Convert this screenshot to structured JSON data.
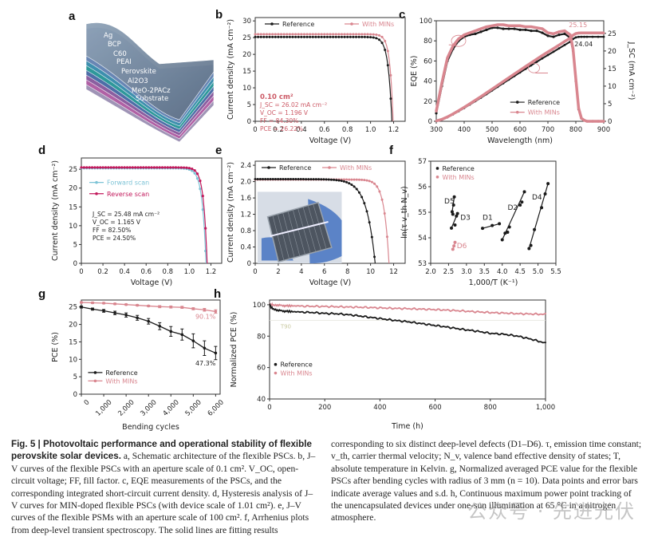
{
  "colors": {
    "reference": "#1a1a1a",
    "mins": "#d9868f",
    "forward": "#7cc3d6",
    "reverse": "#c2185b",
    "axis": "#222",
    "annot": "#cc5a66"
  },
  "panel_a": {
    "label": "a",
    "layers": [
      "Ag",
      "BCP",
      "C60",
      "PEAI",
      "Perovskite",
      "Al2O3",
      "MeO-2PACz",
      "Substrate"
    ]
  },
  "chart_data": [
    {
      "id": "b",
      "label": "b",
      "type": "line",
      "xlabel": "Voltage (V)",
      "ylabel": "Current density (mA cm⁻²)",
      "xlim": [
        0,
        1.3
      ],
      "ylim": [
        0,
        31
      ],
      "xticks": [
        0,
        0.2,
        0.4,
        0.6,
        0.8,
        1.0,
        1.2
      ],
      "xticklabels": [
        "0",
        "0.2",
        "0.4",
        "0.6",
        "0.8",
        "1.0",
        "1.2"
      ],
      "yticks": [
        0,
        5,
        10,
        15,
        20,
        25,
        30
      ],
      "yticklabels": [
        "0",
        "5",
        "10",
        "15",
        "20",
        "25",
        "30"
      ],
      "legend": [
        "Reference",
        "With MINs"
      ],
      "annotation": [
        "0.10 cm²",
        "J_SC = 26.02 mA cm⁻²",
        "V_OC = 1.196 V",
        "FF = 84.30%",
        "PCE = 26.22%"
      ],
      "series": [
        {
          "name": "Reference",
          "jsc": 25.2,
          "voc": 1.185,
          "k": 0.032
        },
        {
          "name": "With MINs",
          "jsc": 26.02,
          "voc": 1.196,
          "k": 0.028
        }
      ]
    },
    {
      "id": "c",
      "label": "c",
      "type": "line",
      "xlabel": "Wavelength (nm)",
      "ylabel": "EQE (%)",
      "y2label": "J_SC (mA cm⁻²)",
      "xlim": [
        300,
        900
      ],
      "ylim": [
        0,
        100
      ],
      "y2lim": [
        0,
        28.6
      ],
      "xticks": [
        300,
        400,
        500,
        600,
        700,
        800,
        900
      ],
      "yticks": [
        0,
        20,
        40,
        60,
        80,
        100
      ],
      "y2ticks": [
        0,
        5,
        10,
        15,
        20,
        25
      ],
      "legend": [
        "Reference",
        "With MINs"
      ],
      "annotations": [
        "25.15",
        "24.04"
      ],
      "eqe_x": [
        300,
        320,
        340,
        360,
        380,
        400,
        420,
        440,
        460,
        480,
        500,
        520,
        540,
        560,
        580,
        600,
        620,
        640,
        660,
        680,
        700,
        720,
        740,
        760,
        780,
        790,
        800,
        810,
        820,
        830,
        840,
        860,
        880,
        900
      ],
      "series": [
        {
          "name": "Reference",
          "eqe": [
            8,
            35,
            60,
            72,
            80,
            84,
            86,
            87,
            89,
            91,
            93,
            93,
            92,
            92,
            92,
            91,
            91,
            90,
            90,
            88,
            85,
            84,
            86,
            87,
            83,
            70,
            40,
            12,
            3,
            1,
            0,
            0,
            0,
            0
          ],
          "jsc_final": 24.04
        },
        {
          "name": "With MINs",
          "eqe": [
            10,
            38,
            63,
            75,
            82,
            86,
            88,
            90,
            92,
            94,
            95,
            96,
            96,
            95,
            95,
            95,
            94,
            94,
            93,
            92,
            88,
            87,
            89,
            90,
            86,
            72,
            42,
            13,
            3,
            1,
            0,
            0,
            0,
            0
          ],
          "jsc_final": 25.15
        }
      ]
    },
    {
      "id": "d",
      "label": "d",
      "type": "line",
      "xlabel": "Voltage (V)",
      "ylabel": "Current density (mA cm⁻²)",
      "xlim": [
        0,
        1.3
      ],
      "ylim": [
        0,
        28
      ],
      "xticks": [
        0,
        0.2,
        0.4,
        0.6,
        0.8,
        1.0,
        1.2
      ],
      "xticklabels": [
        "0",
        "0.2",
        "0.4",
        "0.6",
        "0.8",
        "1.0",
        "1.2"
      ],
      "yticks": [
        0,
        5,
        10,
        15,
        20,
        25
      ],
      "legend": [
        "Forward scan",
        "Reverse scan"
      ],
      "annotation": [
        "J_SC = 25.48 mA cm⁻²",
        "V_OC = 1.165 V",
        "FF = 82.50%",
        "PCE = 24.50%"
      ],
      "series": [
        {
          "name": "Forward scan",
          "jsc": 25.3,
          "voc": 1.155,
          "k": 0.036
        },
        {
          "name": "Reverse scan",
          "jsc": 25.48,
          "voc": 1.165,
          "k": 0.033
        }
      ]
    },
    {
      "id": "e",
      "label": "e",
      "type": "line",
      "xlabel": "Voltage (V)",
      "ylabel": "Current density (mA cm⁻²)",
      "xlim": [
        0,
        13
      ],
      "ylim": [
        0,
        2.5
      ],
      "xticks": [
        0,
        2,
        4,
        6,
        8,
        10,
        12
      ],
      "yticks": [
        0,
        0.4,
        0.8,
        1.2,
        1.6,
        2.0,
        2.4
      ],
      "yticklabels": [
        "0",
        "0.4",
        "0.8",
        "1.2",
        "1.6",
        "2.0",
        "2.4"
      ],
      "legend": [
        "Reference",
        "With MINs"
      ],
      "series": [
        {
          "name": "Reference",
          "jsc": 2.06,
          "voc": 10.4,
          "k": 0.75
        },
        {
          "name": "With MINs",
          "jsc": 2.05,
          "voc": 11.6,
          "k": 0.42
        }
      ],
      "inset": "photo of flexible perovskite solar module held in gloved hand"
    },
    {
      "id": "f",
      "label": "f",
      "type": "scatter",
      "xlabel": "1,000/T (K⁻¹)",
      "ylabel": "ln(τ v_th N_v)",
      "xlim": [
        2.0,
        5.5
      ],
      "ylim": [
        53,
        57
      ],
      "xticks": [
        2.0,
        2.5,
        3.0,
        3.5,
        4.0,
        4.5,
        5.0,
        5.5
      ],
      "xticklabels": [
        "2.0",
        "2.5",
        "3.0",
        "3.5",
        "4.0",
        "4.5",
        "5.0",
        "5.5"
      ],
      "yticks": [
        53,
        54,
        55,
        56,
        57
      ],
      "legend": [
        "Reference",
        "With MINs"
      ],
      "defects": [
        {
          "name": "D1",
          "series": "Reference",
          "points": [
            [
              3.45,
              54.37
            ],
            [
              3.72,
              54.48
            ],
            [
              3.92,
              54.55
            ]
          ]
        },
        {
          "name": "D2",
          "series": "Reference",
          "points": [
            [
              4.0,
              53.92
            ],
            [
              4.08,
              54.18
            ],
            [
              4.15,
              54.22
            ],
            [
              4.2,
              54.42
            ],
            [
              4.5,
              55.28
            ],
            [
              4.55,
              55.4
            ],
            [
              4.62,
              55.8
            ]
          ]
        },
        {
          "name": "D3",
          "series": "Reference",
          "points": [
            [
              2.58,
              54.38
            ],
            [
              2.68,
              54.5
            ],
            [
              2.72,
              54.85
            ],
            [
              2.75,
              54.95
            ]
          ]
        },
        {
          "name": "D4",
          "series": "Reference",
          "points": [
            [
              4.75,
              53.58
            ],
            [
              4.8,
              53.7
            ],
            [
              4.9,
              54.32
            ],
            [
              5.1,
              55.18
            ],
            [
              5.2,
              55.72
            ],
            [
              5.28,
              56.12
            ]
          ]
        },
        {
          "name": "D5",
          "series": "Reference",
          "points": [
            [
              2.6,
              55.02
            ],
            [
              2.62,
              54.92
            ],
            [
              2.64,
              55.28
            ],
            [
              2.66,
              55.6
            ]
          ]
        },
        {
          "name": "D6",
          "series": "With MINs",
          "points": [
            [
              2.62,
              53.55
            ],
            [
              2.65,
              53.68
            ],
            [
              2.68,
              53.82
            ]
          ]
        }
      ]
    },
    {
      "id": "g",
      "label": "g",
      "type": "line",
      "xlabel": "Bending cycles",
      "ylabel": "PCE (%)",
      "xlim": [
        0,
        6200
      ],
      "ylim": [
        0,
        27
      ],
      "xticks": [
        0,
        1000,
        2000,
        3000,
        4000,
        5000,
        6000
      ],
      "xticklabels": [
        "0",
        "1,000",
        "2,000",
        "3,000",
        "4,000",
        "5,000",
        "6,000"
      ],
      "yticks": [
        0,
        5,
        10,
        15,
        20,
        25
      ],
      "legend": [
        "Reference",
        "With MINs"
      ],
      "annotations": [
        "90.1%",
        "47.3%"
      ],
      "x": [
        0,
        500,
        1000,
        1500,
        2000,
        2500,
        3000,
        3500,
        4000,
        4500,
        5000,
        5500,
        6000
      ],
      "series": [
        {
          "name": "Reference",
          "values": [
            25.0,
            24.4,
            23.9,
            23.3,
            22.7,
            21.9,
            20.9,
            19.5,
            18.0,
            17.1,
            15.3,
            13.2,
            11.8
          ],
          "err": [
            0.3,
            0.3,
            0.4,
            0.5,
            0.6,
            0.7,
            0.8,
            1.0,
            1.4,
            1.6,
            2.0,
            2.1,
            1.9
          ]
        },
        {
          "name": "With MINs",
          "values": [
            26.3,
            26.2,
            26.1,
            25.9,
            25.7,
            25.5,
            25.3,
            25.1,
            25.0,
            24.9,
            24.5,
            24.2,
            23.7
          ],
          "err": [
            0.2,
            0.2,
            0.2,
            0.2,
            0.2,
            0.2,
            0.2,
            0.3,
            0.3,
            0.3,
            0.3,
            0.4,
            0.5
          ]
        }
      ]
    },
    {
      "id": "h",
      "label": "h",
      "type": "line",
      "xlabel": "Time (h)",
      "ylabel": "Normalized PCE (%)",
      "xlim": [
        0,
        1000
      ],
      "ylim": [
        40,
        103
      ],
      "xticks": [
        0,
        200,
        400,
        600,
        800,
        1000
      ],
      "xticklabels": [
        "0",
        "200",
        "400",
        "600",
        "800",
        "1,000"
      ],
      "yticks": [
        40,
        60,
        80,
        100
      ],
      "legend": [
        "Reference",
        "With MINs"
      ],
      "annotation": "T90",
      "x": [
        0,
        10,
        30,
        60,
        100,
        150,
        200,
        250,
        300,
        350,
        400,
        450,
        500,
        550,
        600,
        650,
        700,
        750,
        800,
        850,
        900,
        950,
        1000
      ],
      "series": [
        {
          "name": "Reference",
          "values": [
            100,
            97.5,
            96.3,
            95.9,
            95.4,
            95.1,
            94.5,
            94.2,
            93.4,
            92.3,
            91.2,
            90.1,
            89.2,
            88.0,
            86.8,
            85.6,
            84.3,
            83.2,
            81.8,
            81.2,
            80.0,
            78.0,
            75.5
          ]
        },
        {
          "name": "With MINs",
          "values": [
            100,
            99.8,
            99.6,
            99.4,
            99.2,
            99.0,
            98.9,
            98.7,
            98.5,
            98.3,
            98.0,
            97.7,
            97.5,
            97.2,
            96.9,
            96.5,
            96.0,
            95.5,
            95.0,
            94.7,
            94.3,
            94.1,
            93.9
          ]
        }
      ]
    }
  ],
  "caption": {
    "title": "Fig. 5 | Photovoltaic performance and operational stability of flexible perovskite solar devices.",
    "left_text": " a, Schematic architecture of the flexible PSCs. b, J–V curves of the flexible PSCs with an aperture scale of 0.1 cm². V_OC, open-circuit voltage; FF, fill factor. c, EQE measurements of the PSCs, and the corresponding integrated short-circuit current density. d, Hysteresis analysis of J–V curves for MIN-doped flexible PSCs (with device scale of 1.01 cm²). e, J–V curves of the flexible PSMs with an aperture scale of 100 cm². f, Arrhenius plots from deep-level transient spectroscopy. The solid lines are fitting results",
    "right_text": "corresponding to six distinct deep-level defects (D1–D6). τ, emission time constant; v_th, carrier thermal velocity; N_v, valence band effective density of states; T, absolute temperature in Kelvin. g, Normalized averaged PCE value for the flexible PSCs after bending cycles with radius of 3 mm (n = 10). Data points and error bars indicate average values and s.d. h, Continuous maximum power point tracking of the unencapsulated devices under one-sun illumination at 65 °C in a nitrogen atmosphere."
  },
  "watermark": "公众号 · 先进光伏"
}
